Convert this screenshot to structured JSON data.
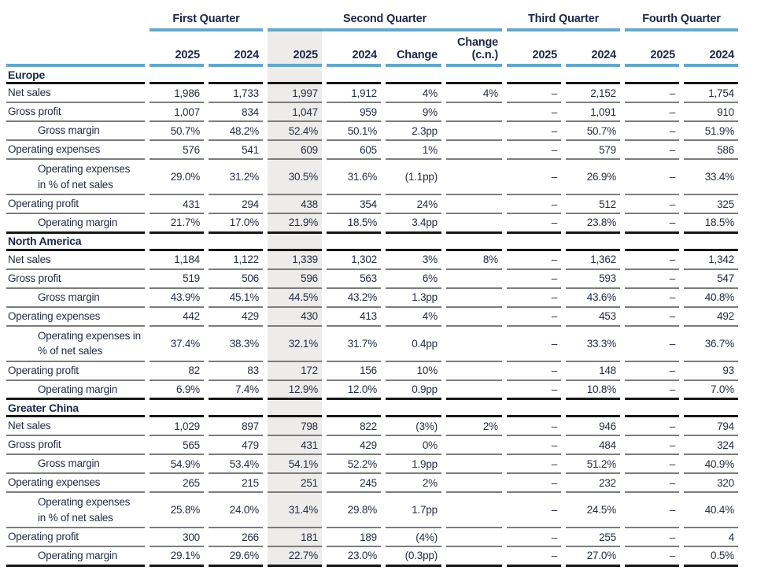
{
  "colors": {
    "accent_blue": "#67a6c9",
    "header_text": "#1d2747",
    "body_text": "#242e44",
    "row_line": "#7c7c7c",
    "section_line": "#171717",
    "highlight_column_shade": "#edeceb"
  },
  "table": {
    "highlight_column": "Second Quarter 2025",
    "quarter_groups": [
      {
        "label": "First Quarter",
        "colspan": 2
      },
      {
        "label": "Second Quarter",
        "colspan": 4
      },
      {
        "label": "Third Quarter",
        "colspan": 2
      },
      {
        "label": "Fourth Quarter",
        "colspan": 2
      }
    ],
    "columns": [
      "2025",
      "2024",
      "2025",
      "2024",
      "Change",
      "Change\n(c.n.)",
      "2025",
      "2024",
      "2025",
      "2024"
    ],
    "sections": [
      {
        "name": "Europe",
        "rows": [
          {
            "label": "Net sales",
            "indent": false,
            "values": [
              "1,986",
              "1,733",
              "1,997",
              "1,912",
              "4%",
              "4%",
              "–",
              "2,152",
              "–",
              "1,754"
            ]
          },
          {
            "label": "Gross profit",
            "indent": false,
            "values": [
              "1,007",
              "834",
              "1,047",
              "959",
              "9%",
              "",
              "–",
              "1,091",
              "–",
              "910"
            ]
          },
          {
            "label": "Gross margin",
            "indent": true,
            "values": [
              "50.7%",
              "48.2%",
              "52.4%",
              "50.1%",
              "2.3pp",
              "",
              "–",
              "50.7%",
              "–",
              "51.9%"
            ]
          },
          {
            "label": "Operating expenses",
            "indent": false,
            "values": [
              "576",
              "541",
              "609",
              "605",
              "1%",
              "",
              "–",
              "579",
              "–",
              "586"
            ]
          },
          {
            "label": "Operating expenses\nin % of net sales",
            "indent": true,
            "values": [
              "29.0%",
              "31.2%",
              "30.5%",
              "31.6%",
              "(1.1pp)",
              "",
              "–",
              "26.9%",
              "–",
              "33.4%"
            ]
          },
          {
            "label": "Operating profit",
            "indent": false,
            "values": [
              "431",
              "294",
              "438",
              "354",
              "24%",
              "",
              "–",
              "512",
              "–",
              "325"
            ]
          },
          {
            "label": "Operating margin",
            "indent": true,
            "values": [
              "21.7%",
              "17.0%",
              "21.9%",
              "18.5%",
              "3.4pp",
              "",
              "–",
              "23.8%",
              "–",
              "18.5%"
            ]
          }
        ]
      },
      {
        "name": "North America",
        "rows": [
          {
            "label": "Net sales",
            "indent": false,
            "values": [
              "1,184",
              "1,122",
              "1,339",
              "1,302",
              "3%",
              "8%",
              "–",
              "1,362",
              "–",
              "1,342"
            ]
          },
          {
            "label": "Gross profit",
            "indent": false,
            "values": [
              "519",
              "506",
              "596",
              "563",
              "6%",
              "",
              "–",
              "593",
              "–",
              "547"
            ]
          },
          {
            "label": "Gross margin",
            "indent": true,
            "values": [
              "43.9%",
              "45.1%",
              "44.5%",
              "43.2%",
              "1.3pp",
              "",
              "–",
              "43.6%",
              "–",
              "40.8%"
            ]
          },
          {
            "label": "Operating expenses",
            "indent": false,
            "values": [
              "442",
              "429",
              "430",
              "413",
              "4%",
              "",
              "–",
              "453",
              "–",
              "492"
            ]
          },
          {
            "label": "Operating expenses in\n% of net sales",
            "indent": true,
            "values": [
              "37.4%",
              "38.3%",
              "32.1%",
              "31.7%",
              "0.4pp",
              "",
              "–",
              "33.3%",
              "–",
              "36.7%"
            ]
          },
          {
            "label": "Operating profit",
            "indent": false,
            "values": [
              "82",
              "83",
              "172",
              "156",
              "10%",
              "",
              "–",
              "148",
              "–",
              "93"
            ]
          },
          {
            "label": "Operating margin",
            "indent": true,
            "values": [
              "6.9%",
              "7.4%",
              "12.9%",
              "12.0%",
              "0.9pp",
              "",
              "–",
              "10.8%",
              "–",
              "7.0%"
            ]
          }
        ]
      },
      {
        "name": "Greater China",
        "rows": [
          {
            "label": "Net sales",
            "indent": false,
            "values": [
              "1,029",
              "897",
              "798",
              "822",
              "(3%)",
              "2%",
              "–",
              "946",
              "–",
              "794"
            ]
          },
          {
            "label": "Gross profit",
            "indent": false,
            "values": [
              "565",
              "479",
              "431",
              "429",
              "0%",
              "",
              "–",
              "484",
              "–",
              "324"
            ]
          },
          {
            "label": "Gross margin",
            "indent": true,
            "values": [
              "54.9%",
              "53.4%",
              "54.1%",
              "52.2%",
              "1.9pp",
              "",
              "–",
              "51.2%",
              "–",
              "40.9%"
            ]
          },
          {
            "label": "Operating expenses",
            "indent": false,
            "values": [
              "265",
              "215",
              "251",
              "245",
              "2%",
              "",
              "–",
              "232",
              "–",
              "320"
            ]
          },
          {
            "label": "Operating expenses\nin % of net sales",
            "indent": true,
            "values": [
              "25.8%",
              "24.0%",
              "31.4%",
              "29.8%",
              "1.7pp",
              "",
              "–",
              "24.5%",
              "–",
              "40.4%"
            ]
          },
          {
            "label": "Operating profit",
            "indent": false,
            "values": [
              "300",
              "266",
              "181",
              "189",
              "(4%)",
              "",
              "–",
              "255",
              "–",
              "4"
            ]
          },
          {
            "label": "Operating margin",
            "indent": true,
            "values": [
              "29.1%",
              "29.6%",
              "22.7%",
              "23.0%",
              "(0.3pp)",
              "",
              "–",
              "27.0%",
              "–",
              "0.5%"
            ]
          }
        ]
      }
    ]
  }
}
